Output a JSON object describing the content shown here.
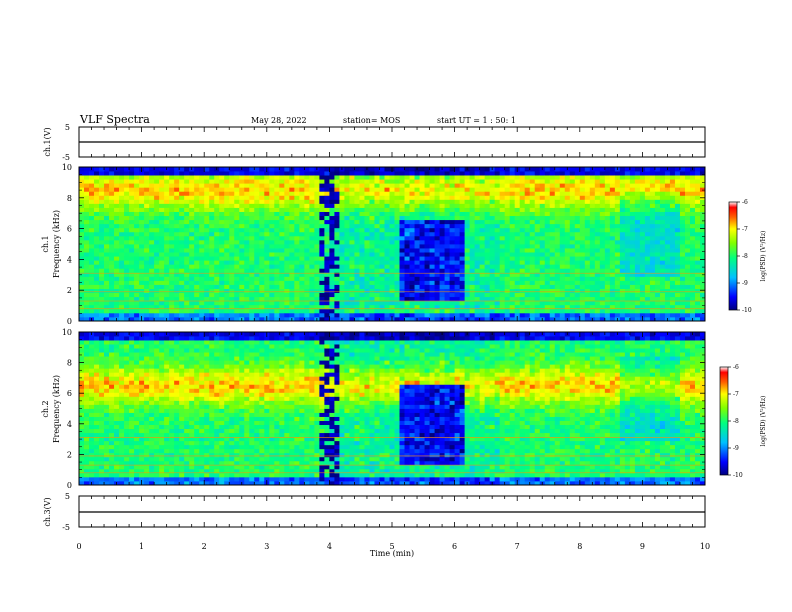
{
  "header": {
    "title": "VLF Spectra",
    "date": "May 28, 2022",
    "station": "station= MOS",
    "start": "start  UT =   1 : 50: 1"
  },
  "chart_data": [
    {
      "type": "line",
      "ylabel": "ch.1(V)",
      "ylim": [
        -5,
        5
      ],
      "yticks": [
        "5",
        "-5"
      ],
      "x": [
        0,
        10
      ],
      "values": [
        0,
        0
      ]
    },
    {
      "type": "heatmap",
      "ylabel_1": "ch.1",
      "ylabel_2": "Frequency (kHz)",
      "ylim": [
        0,
        10
      ],
      "yticks": [
        "0",
        "2",
        "4",
        "6",
        "8",
        "10"
      ],
      "colorbar": {
        "label": "log(PSD) (V²/Hz)",
        "range": [
          -10,
          -6
        ],
        "ticks": [
          "-6",
          "-7",
          "-8",
          "-9",
          "-10"
        ]
      }
    },
    {
      "type": "heatmap",
      "ylabel_1": "ch.2",
      "ylabel_2": "Frequency (kHz)",
      "ylim": [
        0,
        10
      ],
      "yticks": [
        "0",
        "2",
        "4",
        "6",
        "8",
        "10"
      ],
      "colorbar": {
        "label": "log(PSD) (V²/Hz)",
        "range": [
          -10,
          -6
        ],
        "ticks": [
          "-6",
          "-7",
          "-8",
          "-9",
          "-10"
        ]
      }
    },
    {
      "type": "line",
      "ylabel": "ch.3(V)",
      "ylim": [
        -5,
        5
      ],
      "yticks": [
        "5",
        "-5"
      ],
      "x": [
        0,
        10
      ],
      "values": [
        0,
        0
      ]
    }
  ],
  "xaxis": {
    "label": "Time (min)",
    "xlim": [
      0,
      10
    ],
    "ticks": [
      "0",
      "1",
      "2",
      "3",
      "4",
      "5",
      "6",
      "7",
      "8",
      "9",
      "10"
    ]
  }
}
